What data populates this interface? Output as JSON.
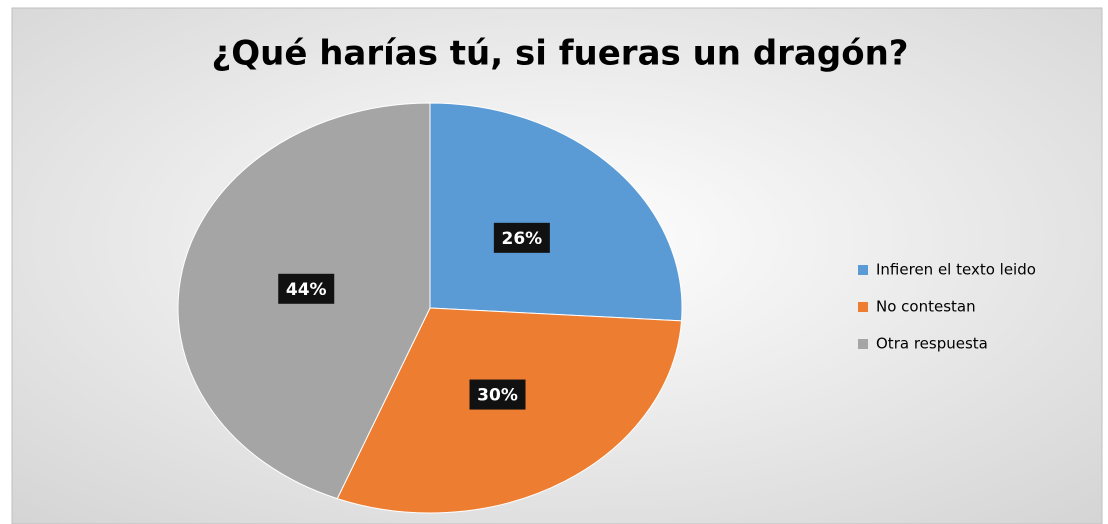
{
  "chart_data": {
    "type": "pie",
    "title": "¿Qué harías tú, si fueras un dragón?",
    "categories": [
      "Infieren el texto leido",
      "No contestan",
      "Otra respuesta"
    ],
    "values": [
      26,
      30,
      44
    ],
    "value_labels": [
      "26%",
      "30%",
      "44%"
    ],
    "colors": [
      "#5b9bd5",
      "#ed7d31",
      "#a5a5a5"
    ],
    "legend": "right"
  }
}
